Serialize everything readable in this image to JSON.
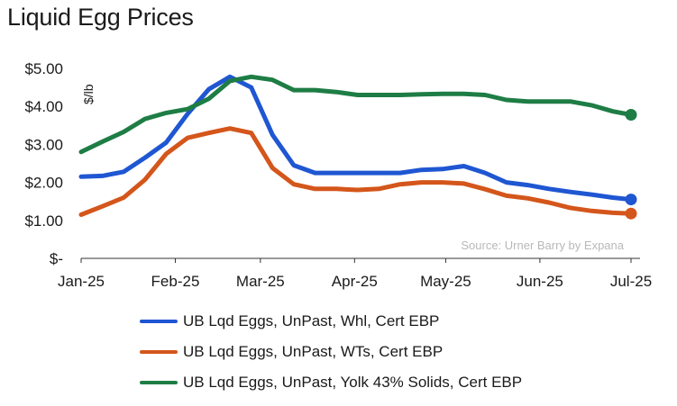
{
  "chart_data": {
    "type": "line",
    "title": "Liquid Egg Prices",
    "ylabel": "$/lb",
    "xlabel": "",
    "source": "Source: Urner Barry by Expana",
    "ylim": [
      0,
      5
    ],
    "yticks": [
      {
        "value": 0,
        "label": "$-"
      },
      {
        "value": 1,
        "label": "$1.00"
      },
      {
        "value": 2,
        "label": "$2.00"
      },
      {
        "value": 3,
        "label": "$3.00"
      },
      {
        "value": 4,
        "label": "$4.00"
      },
      {
        "value": 5,
        "label": "$5.00"
      }
    ],
    "xlim": [
      "2025-01-01",
      "2025-07-01"
    ],
    "xticks": [
      {
        "value": "2025-01-01",
        "label": "Jan-25"
      },
      {
        "value": "2025-02-01",
        "label": "Feb-25"
      },
      {
        "value": "2025-03-01",
        "label": "Mar-25"
      },
      {
        "value": "2025-04-01",
        "label": "Apr-25"
      },
      {
        "value": "2025-05-01",
        "label": "May-25"
      },
      {
        "value": "2025-06-01",
        "label": "Jun-25"
      },
      {
        "value": "2025-07-01",
        "label": "Jul-25"
      }
    ],
    "legend_position": "bottom",
    "grid": false,
    "series": [
      {
        "name": "UB Lqd Eggs, UnPast, Whl, Cert EBP",
        "color": "#1f56d2",
        "points": [
          [
            "2025-01-01",
            2.15
          ],
          [
            "2025-01-08",
            2.17
          ],
          [
            "2025-01-15",
            2.28
          ],
          [
            "2025-01-22",
            2.65
          ],
          [
            "2025-01-29",
            3.05
          ],
          [
            "2025-02-05",
            3.8
          ],
          [
            "2025-02-12",
            4.45
          ],
          [
            "2025-02-19",
            4.78
          ],
          [
            "2025-02-26",
            4.5
          ],
          [
            "2025-03-05",
            3.25
          ],
          [
            "2025-03-12",
            2.45
          ],
          [
            "2025-03-19",
            2.25
          ],
          [
            "2025-03-26",
            2.25
          ],
          [
            "2025-04-02",
            2.25
          ],
          [
            "2025-04-09",
            2.25
          ],
          [
            "2025-04-16",
            2.25
          ],
          [
            "2025-04-23",
            2.33
          ],
          [
            "2025-04-30",
            2.35
          ],
          [
            "2025-05-07",
            2.43
          ],
          [
            "2025-05-14",
            2.25
          ],
          [
            "2025-05-21",
            2.0
          ],
          [
            "2025-05-28",
            1.93
          ],
          [
            "2025-06-04",
            1.83
          ],
          [
            "2025-06-11",
            1.75
          ],
          [
            "2025-06-18",
            1.68
          ],
          [
            "2025-06-25",
            1.6
          ],
          [
            "2025-07-01",
            1.55
          ]
        ]
      },
      {
        "name": "UB Lqd Eggs, UnPast, WTs, Cert EBP",
        "color": "#d4561b",
        "points": [
          [
            "2025-01-01",
            1.15
          ],
          [
            "2025-01-08",
            1.37
          ],
          [
            "2025-01-15",
            1.6
          ],
          [
            "2025-01-22",
            2.07
          ],
          [
            "2025-01-29",
            2.75
          ],
          [
            "2025-02-05",
            3.17
          ],
          [
            "2025-02-12",
            3.3
          ],
          [
            "2025-02-19",
            3.42
          ],
          [
            "2025-02-26",
            3.3
          ],
          [
            "2025-03-05",
            2.38
          ],
          [
            "2025-03-12",
            1.95
          ],
          [
            "2025-03-19",
            1.83
          ],
          [
            "2025-03-26",
            1.83
          ],
          [
            "2025-04-02",
            1.8
          ],
          [
            "2025-04-09",
            1.83
          ],
          [
            "2025-04-16",
            1.95
          ],
          [
            "2025-04-23",
            2.0
          ],
          [
            "2025-04-30",
            2.0
          ],
          [
            "2025-05-07",
            1.97
          ],
          [
            "2025-05-14",
            1.82
          ],
          [
            "2025-05-21",
            1.65
          ],
          [
            "2025-05-28",
            1.58
          ],
          [
            "2025-06-04",
            1.47
          ],
          [
            "2025-06-11",
            1.33
          ],
          [
            "2025-06-18",
            1.25
          ],
          [
            "2025-06-25",
            1.2
          ],
          [
            "2025-07-01",
            1.18
          ]
        ]
      },
      {
        "name": "UB Lqd Eggs, UnPast, Yolk 43% Solids, Cert EBP",
        "color": "#1e7d45",
        "points": [
          [
            "2025-01-01",
            2.8
          ],
          [
            "2025-01-08",
            3.07
          ],
          [
            "2025-01-15",
            3.33
          ],
          [
            "2025-01-22",
            3.67
          ],
          [
            "2025-01-29",
            3.83
          ],
          [
            "2025-02-05",
            3.93
          ],
          [
            "2025-02-12",
            4.2
          ],
          [
            "2025-02-19",
            4.67
          ],
          [
            "2025-02-26",
            4.78
          ],
          [
            "2025-03-05",
            4.7
          ],
          [
            "2025-03-12",
            4.43
          ],
          [
            "2025-03-19",
            4.43
          ],
          [
            "2025-03-26",
            4.38
          ],
          [
            "2025-04-02",
            4.3
          ],
          [
            "2025-04-09",
            4.3
          ],
          [
            "2025-04-16",
            4.3
          ],
          [
            "2025-04-23",
            4.32
          ],
          [
            "2025-04-30",
            4.33
          ],
          [
            "2025-05-07",
            4.33
          ],
          [
            "2025-05-14",
            4.3
          ],
          [
            "2025-05-21",
            4.17
          ],
          [
            "2025-05-28",
            4.13
          ],
          [
            "2025-06-04",
            4.13
          ],
          [
            "2025-06-11",
            4.13
          ],
          [
            "2025-06-18",
            4.03
          ],
          [
            "2025-06-25",
            3.87
          ],
          [
            "2025-07-01",
            3.78
          ]
        ]
      }
    ]
  }
}
